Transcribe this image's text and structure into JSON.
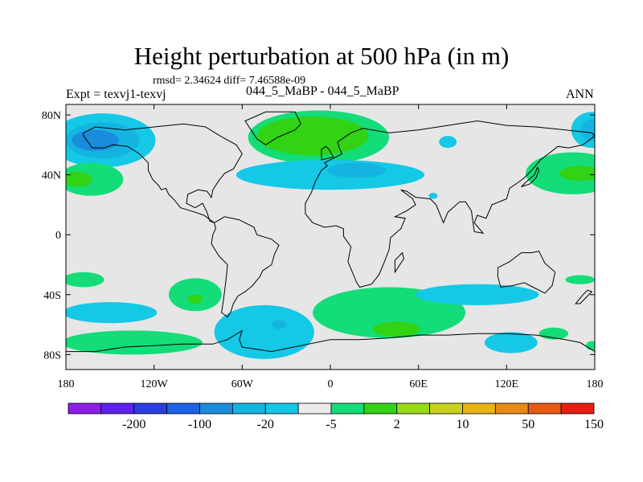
{
  "title": "Height perturbation at 500 hPa (in m)",
  "stats": {
    "rmsd_label": "rmsd=",
    "rmsd": "2.34624",
    "diff_label": "diff=",
    "diff": "7.46588e-09"
  },
  "left_label": "Expt = texvj1-texvj",
  "center_label": "044_5_MaBP - 044_5_MaBP",
  "right_label": "ANN",
  "axes": {
    "x_ticks": [
      {
        "lon": -180,
        "label": "180"
      },
      {
        "lon": -120,
        "label": "120W"
      },
      {
        "lon": -60,
        "label": "60W"
      },
      {
        "lon": 0,
        "label": "0"
      },
      {
        "lon": 60,
        "label": "60E"
      },
      {
        "lon": 120,
        "label": "120E"
      },
      {
        "lon": 180,
        "label": "180"
      }
    ],
    "y_ticks": [
      {
        "lat": 80,
        "label": "80N"
      },
      {
        "lat": 40,
        "label": "40N"
      },
      {
        "lat": 0,
        "label": "0"
      },
      {
        "lat": -40,
        "label": "40S"
      },
      {
        "lat": -80,
        "label": "80S"
      }
    ]
  },
  "colorbar": {
    "colors": [
      "#8c1ee6",
      "#6020ee",
      "#2a3ee0",
      "#1e62e6",
      "#1a8cdc",
      "#14b4e0",
      "#14c8e6",
      "#ececec",
      "#14dc78",
      "#32d214",
      "#96dc14",
      "#c8d21e",
      "#e6b414",
      "#e68c14",
      "#e65a14",
      "#e61e14"
    ],
    "labels": [
      {
        "after_bin": 1,
        "text": "-200"
      },
      {
        "after_bin": 3,
        "text": "-100"
      },
      {
        "after_bin": 5,
        "text": "-20"
      },
      {
        "after_bin": 7,
        "text": "-5"
      },
      {
        "after_bin": 9,
        "text": "2"
      },
      {
        "after_bin": 11,
        "text": "10"
      },
      {
        "after_bin": 13,
        "text": "50"
      },
      {
        "after_bin": 15,
        "text": "150"
      }
    ]
  },
  "colors": {
    "background": "#e6e6e6",
    "light_blue": "#14c8e6",
    "mid_blue": "#14b4e0",
    "blue": "#1a8cdc",
    "green": "#14dc78",
    "yellow_green": "#32d214",
    "coast": "#000000"
  },
  "features": [
    {
      "name": "blob-npac-blue",
      "lon": -155,
      "lat": 63,
      "rlon": 36,
      "rlat": 18,
      "color": "light_blue"
    },
    {
      "name": "blob-npac-mid",
      "lon": -155,
      "lat": 63,
      "rlon": 25,
      "rlat": 12,
      "color": "mid_blue"
    },
    {
      "name": "blob-npac-core",
      "lon": -160,
      "lat": 63,
      "rlon": 16,
      "rlat": 7,
      "color": "blue"
    },
    {
      "name": "blob-pac-green",
      "lon": -163,
      "lat": 37,
      "rlon": 22,
      "rlat": 11,
      "color": "green"
    },
    {
      "name": "blob-pac-yellow",
      "lon": -172,
      "lat": 37,
      "rlon": 10,
      "rlat": 5,
      "color": "yellow_green"
    },
    {
      "name": "blob-arctic-green",
      "lon": -8,
      "lat": 65,
      "rlon": 48,
      "rlat": 18,
      "color": "green"
    },
    {
      "name": "blob-arctic-yellow",
      "lon": -12,
      "lat": 66,
      "rlon": 38,
      "rlat": 13,
      "color": "yellow_green"
    },
    {
      "name": "blob-natl-blue",
      "lon": 0,
      "lat": 40,
      "rlon": 64,
      "rlat": 10,
      "color": "light_blue"
    },
    {
      "name": "blob-natl-mid",
      "lon": 18,
      "lat": 43,
      "rlon": 20,
      "rlat": 5,
      "color": "mid_blue"
    },
    {
      "name": "blob-asia-small",
      "lon": 80,
      "lat": 62,
      "rlon": 6,
      "rlat": 4,
      "color": "light_blue"
    },
    {
      "name": "blob-nwpac-blue",
      "lon": 178,
      "lat": 70,
      "rlon": 14,
      "rlat": 12,
      "color": "light_blue"
    },
    {
      "name": "blob-nwpac-core",
      "lon": 178,
      "lat": 70,
      "rlon": 8,
      "rlat": 7,
      "color": "mid_blue"
    },
    {
      "name": "blob-npac-east-green",
      "lon": 165,
      "lat": 41,
      "rlon": 32,
      "rlat": 14,
      "color": "green"
    },
    {
      "name": "blob-npac-east-yellow",
      "lon": 170,
      "lat": 41,
      "rlon": 14,
      "rlat": 5,
      "color": "yellow_green"
    },
    {
      "name": "blob-tiny-blue",
      "lon": 70,
      "lat": 26,
      "rlon": 3,
      "rlat": 2,
      "color": "light_blue"
    },
    {
      "name": "blob-sepac-green",
      "lon": -92,
      "lat": -40,
      "rlon": 18,
      "rlat": 11,
      "color": "green"
    },
    {
      "name": "blob-sepac-yellow",
      "lon": -92,
      "lat": -43,
      "rlon": 5,
      "rlat": 3,
      "color": "yellow_green"
    },
    {
      "name": "blob-spac-green",
      "lon": -168,
      "lat": -30,
      "rlon": 14,
      "rlat": 5,
      "color": "green"
    },
    {
      "name": "blob-spac-blue",
      "lon": -150,
      "lat": -52,
      "rlon": 32,
      "rlat": 7,
      "color": "light_blue"
    },
    {
      "name": "blob-spac-green2",
      "lon": -135,
      "lat": -72,
      "rlon": 48,
      "rlat": 8,
      "color": "green"
    },
    {
      "name": "blob-satl-blue",
      "lon": -45,
      "lat": -65,
      "rlon": 34,
      "rlat": 18,
      "color": "light_blue"
    },
    {
      "name": "blob-satl-core",
      "lon": -35,
      "lat": -60,
      "rlon": 5,
      "rlat": 3,
      "color": "mid_blue"
    },
    {
      "name": "blob-sind-green",
      "lon": 40,
      "lat": -52,
      "rlon": 52,
      "rlat": 17,
      "color": "green"
    },
    {
      "name": "blob-sind-yellow",
      "lon": 45,
      "lat": -63,
      "rlon": 16,
      "rlat": 5,
      "color": "yellow_green"
    },
    {
      "name": "blob-sind-blue",
      "lon": 100,
      "lat": -40,
      "rlon": 42,
      "rlat": 7,
      "color": "light_blue"
    },
    {
      "name": "blob-saus-blue",
      "lon": 123,
      "lat": -72,
      "rlon": 18,
      "rlat": 7,
      "color": "light_blue"
    },
    {
      "name": "blob-saus-green",
      "lon": 152,
      "lat": -66,
      "rlon": 10,
      "rlat": 4,
      "color": "green"
    },
    {
      "name": "blob-spac-e-green",
      "lon": 170,
      "lat": -30,
      "rlon": 10,
      "rlat": 3,
      "color": "green"
    },
    {
      "name": "blob-spac-e-green2",
      "lon": 178,
      "lat": -74,
      "rlon": 4,
      "rlat": 3,
      "color": "green"
    }
  ],
  "coastlines": [
    {
      "name": "coast-north-america",
      "closed": true,
      "points": [
        [
          -168,
          68
        ],
        [
          -160,
          72
        ],
        [
          -140,
          70
        ],
        [
          -120,
          72
        ],
        [
          -100,
          74
        ],
        [
          -85,
          72
        ],
        [
          -75,
          66
        ],
        [
          -64,
          60
        ],
        [
          -60,
          54
        ],
        [
          -66,
          44
        ],
        [
          -72,
          41
        ],
        [
          -76,
          36
        ],
        [
          -80,
          30
        ],
        [
          -81,
          25
        ],
        [
          -84,
          29
        ],
        [
          -90,
          30
        ],
        [
          -97,
          27
        ],
        [
          -98,
          21
        ],
        [
          -92,
          18
        ],
        [
          -87,
          21
        ],
        [
          -84,
          15
        ],
        [
          -82,
          9
        ],
        [
          -79,
          8
        ],
        [
          -86,
          13
        ],
        [
          -92,
          15
        ],
        [
          -102,
          18
        ],
        [
          -106,
          23
        ],
        [
          -110,
          27
        ],
        [
          -112,
          31
        ],
        [
          -115,
          30
        ],
        [
          -117,
          33
        ],
        [
          -121,
          37
        ],
        [
          -124,
          43
        ],
        [
          -124,
          48
        ],
        [
          -130,
          54
        ],
        [
          -138,
          59
        ],
        [
          -148,
          60
        ],
        [
          -154,
          58
        ],
        [
          -162,
          58
        ],
        [
          -165,
          62
        ],
        [
          -168,
          66
        ]
      ]
    },
    {
      "name": "coast-greenland",
      "closed": true,
      "points": [
        [
          -58,
          76
        ],
        [
          -44,
          82
        ],
        [
          -24,
          82
        ],
        [
          -20,
          74
        ],
        [
          -24,
          70
        ],
        [
          -36,
          65
        ],
        [
          -44,
          60
        ],
        [
          -50,
          64
        ],
        [
          -54,
          70
        ]
      ]
    },
    {
      "name": "coast-south-america",
      "closed": true,
      "points": [
        [
          -79,
          8
        ],
        [
          -72,
          12
        ],
        [
          -62,
          10
        ],
        [
          -52,
          5
        ],
        [
          -50,
          0
        ],
        [
          -40,
          -3
        ],
        [
          -35,
          -7
        ],
        [
          -38,
          -13
        ],
        [
          -40,
          -20
        ],
        [
          -46,
          -24
        ],
        [
          -48,
          -28
        ],
        [
          -53,
          -34
        ],
        [
          -58,
          -38
        ],
        [
          -63,
          -41
        ],
        [
          -66,
          -46
        ],
        [
          -68,
          -52
        ],
        [
          -70,
          -55
        ],
        [
          -74,
          -52
        ],
        [
          -73,
          -45
        ],
        [
          -72,
          -38
        ],
        [
          -71,
          -30
        ],
        [
          -70,
          -20
        ],
        [
          -76,
          -14
        ],
        [
          -81,
          -6
        ],
        [
          -80,
          0
        ],
        [
          -78,
          4
        ]
      ]
    },
    {
      "name": "coast-eurasia-africa",
      "closed": true,
      "points": [
        [
          -10,
          36
        ],
        [
          -6,
          43
        ],
        [
          -2,
          46
        ],
        [
          -4,
          48
        ],
        [
          2,
          51
        ],
        [
          8,
          54
        ],
        [
          6,
          58
        ],
        [
          5,
          62
        ],
        [
          14,
          68
        ],
        [
          22,
          71
        ],
        [
          40,
          68
        ],
        [
          60,
          70
        ],
        [
          80,
          73
        ],
        [
          100,
          76
        ],
        [
          120,
          73
        ],
        [
          140,
          72
        ],
        [
          160,
          70
        ],
        [
          178,
          68
        ],
        [
          180,
          66
        ],
        [
          172,
          60
        ],
        [
          162,
          58
        ],
        [
          155,
          59
        ],
        [
          143,
          50
        ],
        [
          138,
          44
        ],
        [
          132,
          38
        ],
        [
          128,
          35
        ],
        [
          122,
          31
        ],
        [
          120,
          24
        ],
        [
          110,
          20
        ],
        [
          106,
          11
        ],
        [
          100,
          13
        ],
        [
          98,
          8
        ],
        [
          104,
          1
        ],
        [
          98,
          2
        ],
        [
          96,
          16
        ],
        [
          92,
          22
        ],
        [
          88,
          22
        ],
        [
          80,
          15
        ],
        [
          77,
          8
        ],
        [
          72,
          20
        ],
        [
          68,
          24
        ],
        [
          58,
          25
        ],
        [
          52,
          29
        ],
        [
          48,
          30
        ],
        [
          56,
          24
        ],
        [
          58,
          20
        ],
        [
          52,
          16
        ],
        [
          44,
          12
        ],
        [
          51,
          11
        ],
        [
          48,
          4
        ],
        [
          41,
          -2
        ],
        [
          40,
          -10
        ],
        [
          36,
          -20
        ],
        [
          33,
          -27
        ],
        [
          28,
          -33
        ],
        [
          20,
          -35
        ],
        [
          18,
          -32
        ],
        [
          12,
          -18
        ],
        [
          14,
          -8
        ],
        [
          9,
          -1
        ],
        [
          9,
          4
        ],
        [
          4,
          6
        ],
        [
          -4,
          5
        ],
        [
          -12,
          8
        ],
        [
          -17,
          14
        ],
        [
          -17,
          21
        ],
        [
          -13,
          28
        ]
      ]
    },
    {
      "name": "coast-madagascar",
      "closed": true,
      "points": [
        [
          44,
          -25
        ],
        [
          50,
          -16
        ],
        [
          49,
          -12
        ],
        [
          44,
          -17
        ]
      ]
    },
    {
      "name": "coast-australia",
      "closed": true,
      "points": [
        [
          114,
          -22
        ],
        [
          122,
          -18
        ],
        [
          130,
          -12
        ],
        [
          137,
          -12
        ],
        [
          142,
          -11
        ],
        [
          146,
          -19
        ],
        [
          153,
          -25
        ],
        [
          151,
          -34
        ],
        [
          146,
          -39
        ],
        [
          138,
          -35
        ],
        [
          132,
          -32
        ],
        [
          124,
          -34
        ],
        [
          116,
          -35
        ],
        [
          114,
          -28
        ]
      ]
    },
    {
      "name": "coast-new-zealand",
      "closed": true,
      "points": [
        [
          167,
          -46
        ],
        [
          172,
          -40
        ],
        [
          175,
          -37
        ],
        [
          178,
          -38
        ],
        [
          174,
          -42
        ],
        [
          170,
          -46
        ]
      ]
    },
    {
      "name": "coast-antarctica",
      "closed": false,
      "points": [
        [
          -180,
          -78
        ],
        [
          -160,
          -78
        ],
        [
          -140,
          -75
        ],
        [
          -120,
          -74
        ],
        [
          -100,
          -73
        ],
        [
          -80,
          -73
        ],
        [
          -70,
          -70
        ],
        [
          -60,
          -64
        ],
        [
          -62,
          -70
        ],
        [
          -60,
          -75
        ],
        [
          -40,
          -78
        ],
        [
          -20,
          -74
        ],
        [
          0,
          -70
        ],
        [
          20,
          -70
        ],
        [
          40,
          -69
        ],
        [
          60,
          -67
        ],
        [
          80,
          -67
        ],
        [
          100,
          -66
        ],
        [
          120,
          -66
        ],
        [
          140,
          -67
        ],
        [
          160,
          -70
        ],
        [
          170,
          -72
        ],
        [
          180,
          -78
        ]
      ]
    },
    {
      "name": "coast-uk",
      "closed": true,
      "points": [
        [
          -6,
          50
        ],
        [
          2,
          52
        ],
        [
          -1,
          57
        ],
        [
          -3,
          59
        ],
        [
          -6,
          57
        ]
      ]
    },
    {
      "name": "coast-japan",
      "closed": true,
      "points": [
        [
          130,
          32
        ],
        [
          136,
          34
        ],
        [
          140,
          38
        ],
        [
          142,
          43
        ],
        [
          141,
          45
        ],
        [
          139,
          40
        ],
        [
          133,
          35
        ]
      ]
    }
  ]
}
